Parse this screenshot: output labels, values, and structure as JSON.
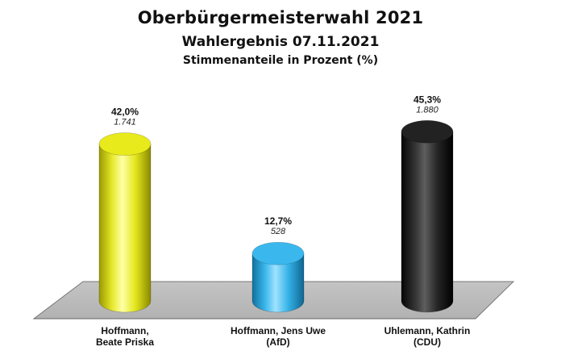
{
  "title": "Oberbürgermeisterwahl 2021",
  "subtitle": "Wahlergebnis  07.11.2021",
  "subtitle2": "Stimmenanteile in Prozent (%)",
  "chart_data": {
    "type": "bar",
    "style": "3d-cylinder",
    "categories": [
      [
        "Hoffmann,",
        "Beate Priska"
      ],
      [
        "Hoffmann, Jens Uwe",
        "(AfD)"
      ],
      [
        "Uhlemann, Kathrin",
        "(CDU)"
      ]
    ],
    "values": [
      42.0,
      12.7,
      45.3
    ],
    "value_labels": [
      "42,0%",
      "12,7%",
      "45,3%"
    ],
    "votes": [
      1741,
      528,
      1880
    ],
    "vote_labels": [
      "1.741",
      "528",
      "1.880"
    ],
    "colors": [
      "#e8ea1c",
      "#3ab8ee",
      "#222222"
    ],
    "ylim": [
      0,
      50
    ],
    "grid": false,
    "legend": "none"
  }
}
